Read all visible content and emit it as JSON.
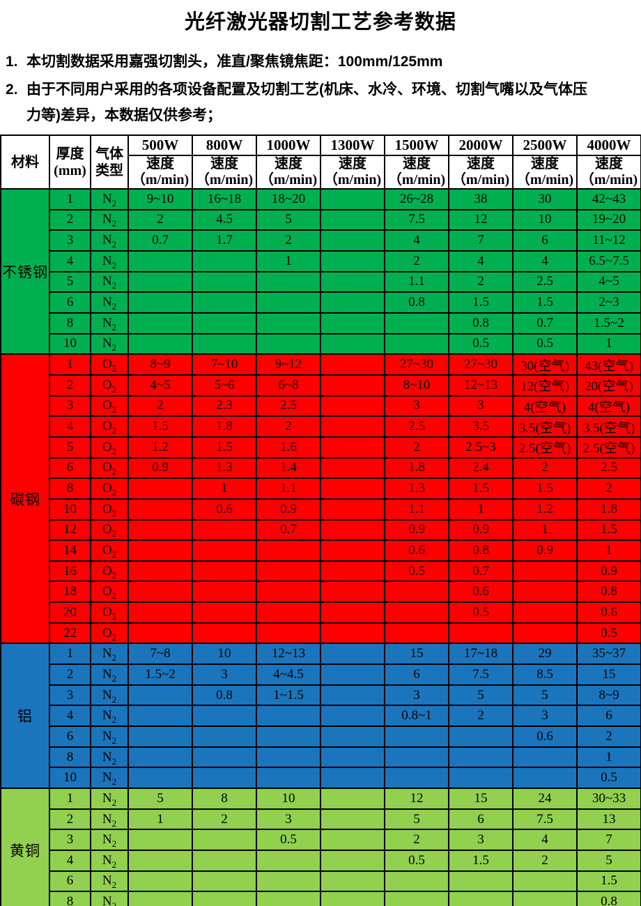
{
  "title": "光纤激光器切割工艺参考数据",
  "notes": [
    {
      "num": "1.",
      "lines": [
        "本切割数据采用嘉强切割头，准直/聚焦镜焦距：100mm/125mm"
      ]
    },
    {
      "num": "2.",
      "lines": [
        "由于不同用户采用的各项设备配置及切割工艺(机床、水冷、环境、切割气嘴以及气体压",
        "力等)差异，本数据仅供参考；"
      ]
    }
  ],
  "table": {
    "header": {
      "material_label": "材料",
      "thickness_label": [
        "厚度",
        "(mm)"
      ],
      "gas_label": [
        "气体",
        "类型"
      ],
      "powers": [
        "500W",
        "800W",
        "1000W",
        "1300W",
        "1500W",
        "2000W",
        "2500W",
        "4000W"
      ],
      "speed_label": [
        "速度",
        "（m/min)"
      ]
    },
    "sections": [
      {
        "material": "不锈钢",
        "color": "#00B050",
        "gas": "N2",
        "rows": [
          {
            "t": "1",
            "v": [
              "9~10",
              "16~18",
              "18~20",
              "",
              "26~28",
              "38",
              "30",
              "42~43"
            ]
          },
          {
            "t": "2",
            "v": [
              "2",
              "4.5",
              "5",
              "",
              "7.5",
              "12",
              "10",
              "19~20"
            ]
          },
          {
            "t": "3",
            "v": [
              "0.7",
              "1.7",
              "2",
              "",
              "4",
              "7",
              "6",
              "11~12"
            ]
          },
          {
            "t": "4",
            "v": [
              "",
              "",
              "1",
              "",
              "2",
              "4",
              "4",
              "6.5~7.5"
            ]
          },
          {
            "t": "5",
            "v": [
              "",
              "",
              "",
              "",
              "1.1",
              "2",
              "2.5",
              "4~5"
            ]
          },
          {
            "t": "6",
            "v": [
              "",
              "",
              "",
              "",
              "0.8",
              "1.5",
              "1.5",
              "2~3"
            ]
          },
          {
            "t": "8",
            "v": [
              "",
              "",
              "",
              "",
              "",
              "0.8",
              "0.7",
              "1.5~2"
            ]
          },
          {
            "t": "10",
            "v": [
              "",
              "",
              "",
              "",
              "",
              "0.5",
              "0.5",
              "1"
            ]
          }
        ]
      },
      {
        "material": "碳钢",
        "color": "#FF0000",
        "gas": "O2",
        "rows": [
          {
            "t": "1",
            "v": [
              "8~9",
              "7~10",
              "9~12",
              "",
              "27~30",
              "27~30",
              "30(空气)",
              "43(空气)"
            ]
          },
          {
            "t": "2",
            "v": [
              "4~5",
              "5~6",
              "6~8",
              "",
              "8~10",
              "12~13",
              "12(空气)",
              "20(空气)"
            ]
          },
          {
            "t": "3",
            "v": [
              "2",
              "2.3",
              "2.5",
              "",
              "3",
              "3",
              "4(空气)",
              "4(空气)"
            ]
          },
          {
            "t": "4",
            "v": [
              "1.5",
              "1.8",
              "2",
              "",
              "2.5",
              "3.5",
              "3.5(空气)",
              "3.5(空气)"
            ]
          },
          {
            "t": "5",
            "v": [
              "1.2",
              "1.5",
              "1.6",
              "",
              "2",
              "2.5~3",
              "2.5(空气)",
              "2.5(空气)"
            ]
          },
          {
            "t": "6",
            "v": [
              "0.9",
              "1.3",
              "1.4",
              "",
              "1.8",
              "2.4",
              "2",
              "2.5"
            ]
          },
          {
            "t": "8",
            "v": [
              "",
              "1",
              "1.1",
              "",
              "1.3",
              "1.5",
              "1.5",
              "2"
            ]
          },
          {
            "t": "10",
            "v": [
              "",
              "0.6",
              "0.9",
              "",
              "1.1",
              "1",
              "1.2",
              "1.8"
            ]
          },
          {
            "t": "12",
            "v": [
              "",
              "",
              "0.7",
              "",
              "0.9",
              "0.9",
              "1",
              "1.5"
            ]
          },
          {
            "t": "14",
            "v": [
              "",
              "",
              "",
              "",
              "0.6",
              "0.8",
              "0.9",
              "1"
            ]
          },
          {
            "t": "16",
            "v": [
              "",
              "",
              "",
              "",
              "0.5",
              "0.7",
              "",
              "0.9"
            ]
          },
          {
            "t": "18",
            "v": [
              "",
              "",
              "",
              "",
              "",
              "0.6",
              "",
              "0.8"
            ]
          },
          {
            "t": "20",
            "v": [
              "",
              "",
              "",
              "",
              "",
              "0.5",
              "",
              "0.6"
            ]
          },
          {
            "t": "22",
            "v": [
              "",
              "",
              "",
              "",
              "",
              "",
              "",
              "0.5"
            ]
          }
        ]
      },
      {
        "material": "铝",
        "color": "#1B75BC",
        "gas": "N2",
        "rows": [
          {
            "t": "1",
            "v": [
              "7~8",
              "10",
              "12~13",
              "",
              "15",
              "17~18",
              "29",
              "35~37"
            ]
          },
          {
            "t": "2",
            "v": [
              "1.5~2",
              "3",
              "4~4.5",
              "",
              "6",
              "7.5",
              "8.5",
              "15"
            ]
          },
          {
            "t": "3",
            "v": [
              "",
              "0.8",
              "1~1.5",
              "",
              "3",
              "5",
              "5",
              "8~9"
            ]
          },
          {
            "t": "4",
            "v": [
              "",
              "",
              "",
              "",
              "0.8~1",
              "2",
              "3",
              "6"
            ]
          },
          {
            "t": "6",
            "v": [
              "",
              "",
              "",
              "",
              "",
              "",
              "0.6",
              "2"
            ]
          },
          {
            "t": "8",
            "v": [
              "",
              "",
              "",
              "",
              "",
              "",
              "",
              "1"
            ]
          },
          {
            "t": "10",
            "v": [
              "",
              "",
              "",
              "",
              "",
              "",
              "",
              "0.5"
            ]
          }
        ]
      },
      {
        "material": "黄铜",
        "color": "#92D050",
        "gas": "N2",
        "rows": [
          {
            "t": "1",
            "v": [
              "5",
              "8",
              "10",
              "",
              "12",
              "15",
              "24",
              "30~33"
            ]
          },
          {
            "t": "2",
            "v": [
              "1",
              "2",
              "3",
              "",
              "5",
              "6",
              "7.5",
              "13"
            ]
          },
          {
            "t": "3",
            "v": [
              "",
              "",
              "0.5",
              "",
              "2",
              "3",
              "4",
              "7"
            ]
          },
          {
            "t": "4",
            "v": [
              "",
              "",
              "",
              "",
              "0.5",
              "1.5",
              "2",
              "5"
            ]
          },
          {
            "t": "6",
            "v": [
              "",
              "",
              "",
              "",
              "",
              "",
              "",
              "1.5"
            ]
          },
          {
            "t": "8",
            "v": [
              "",
              "",
              "",
              "",
              "",
              "",
              "",
              "0.8"
            ]
          }
        ]
      }
    ]
  }
}
